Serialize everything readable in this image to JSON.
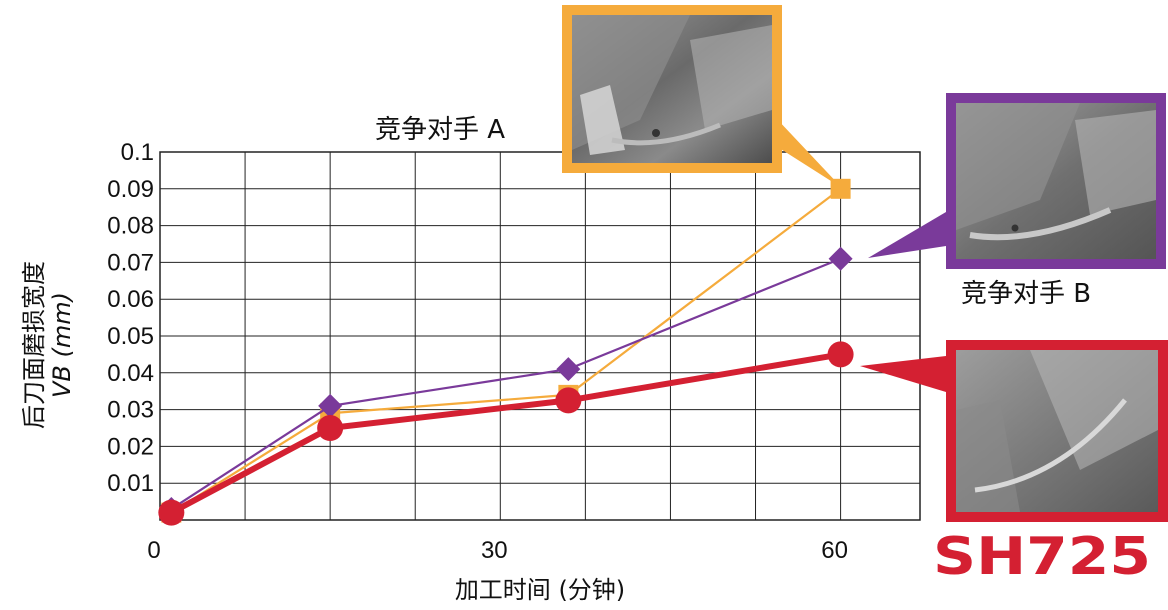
{
  "chart_data": {
    "type": "line",
    "xlabel": "加工时间 (分钟)",
    "ylabel": "后刀面磨损宽度",
    "ylabel_unit": "VB (mm)",
    "x_ticks": [
      "0",
      "30",
      "60"
    ],
    "y_ticks": [
      "0.01",
      "0.02",
      "0.03",
      "0.04",
      "0.05",
      "0.06",
      "0.07",
      "0.08",
      "0.09",
      "0.1"
    ],
    "xlim": [
      0,
      67
    ],
    "ylim": [
      0,
      0.1
    ],
    "grid": true,
    "series": [
      {
        "name": "竞争对手 A",
        "color": "#f5ab3c",
        "marker": "square",
        "x": [
          1,
          15,
          36,
          60
        ],
        "y": [
          0.002,
          0.029,
          0.034,
          0.09
        ]
      },
      {
        "name": "竞争对手 B",
        "color": "#7a3a9a",
        "marker": "diamond",
        "x": [
          1,
          15,
          36,
          60
        ],
        "y": [
          0.003,
          0.031,
          0.041,
          0.071
        ]
      },
      {
        "name": "SH725",
        "color": "#d42032",
        "marker": "circle",
        "x": [
          1,
          15,
          36,
          60
        ],
        "y": [
          0.002,
          0.025,
          0.0325,
          0.045
        ]
      }
    ]
  },
  "callouts": {
    "a_label": "竞争对手 A",
    "b_label": "竞争对手 B",
    "brand": "SH725"
  }
}
